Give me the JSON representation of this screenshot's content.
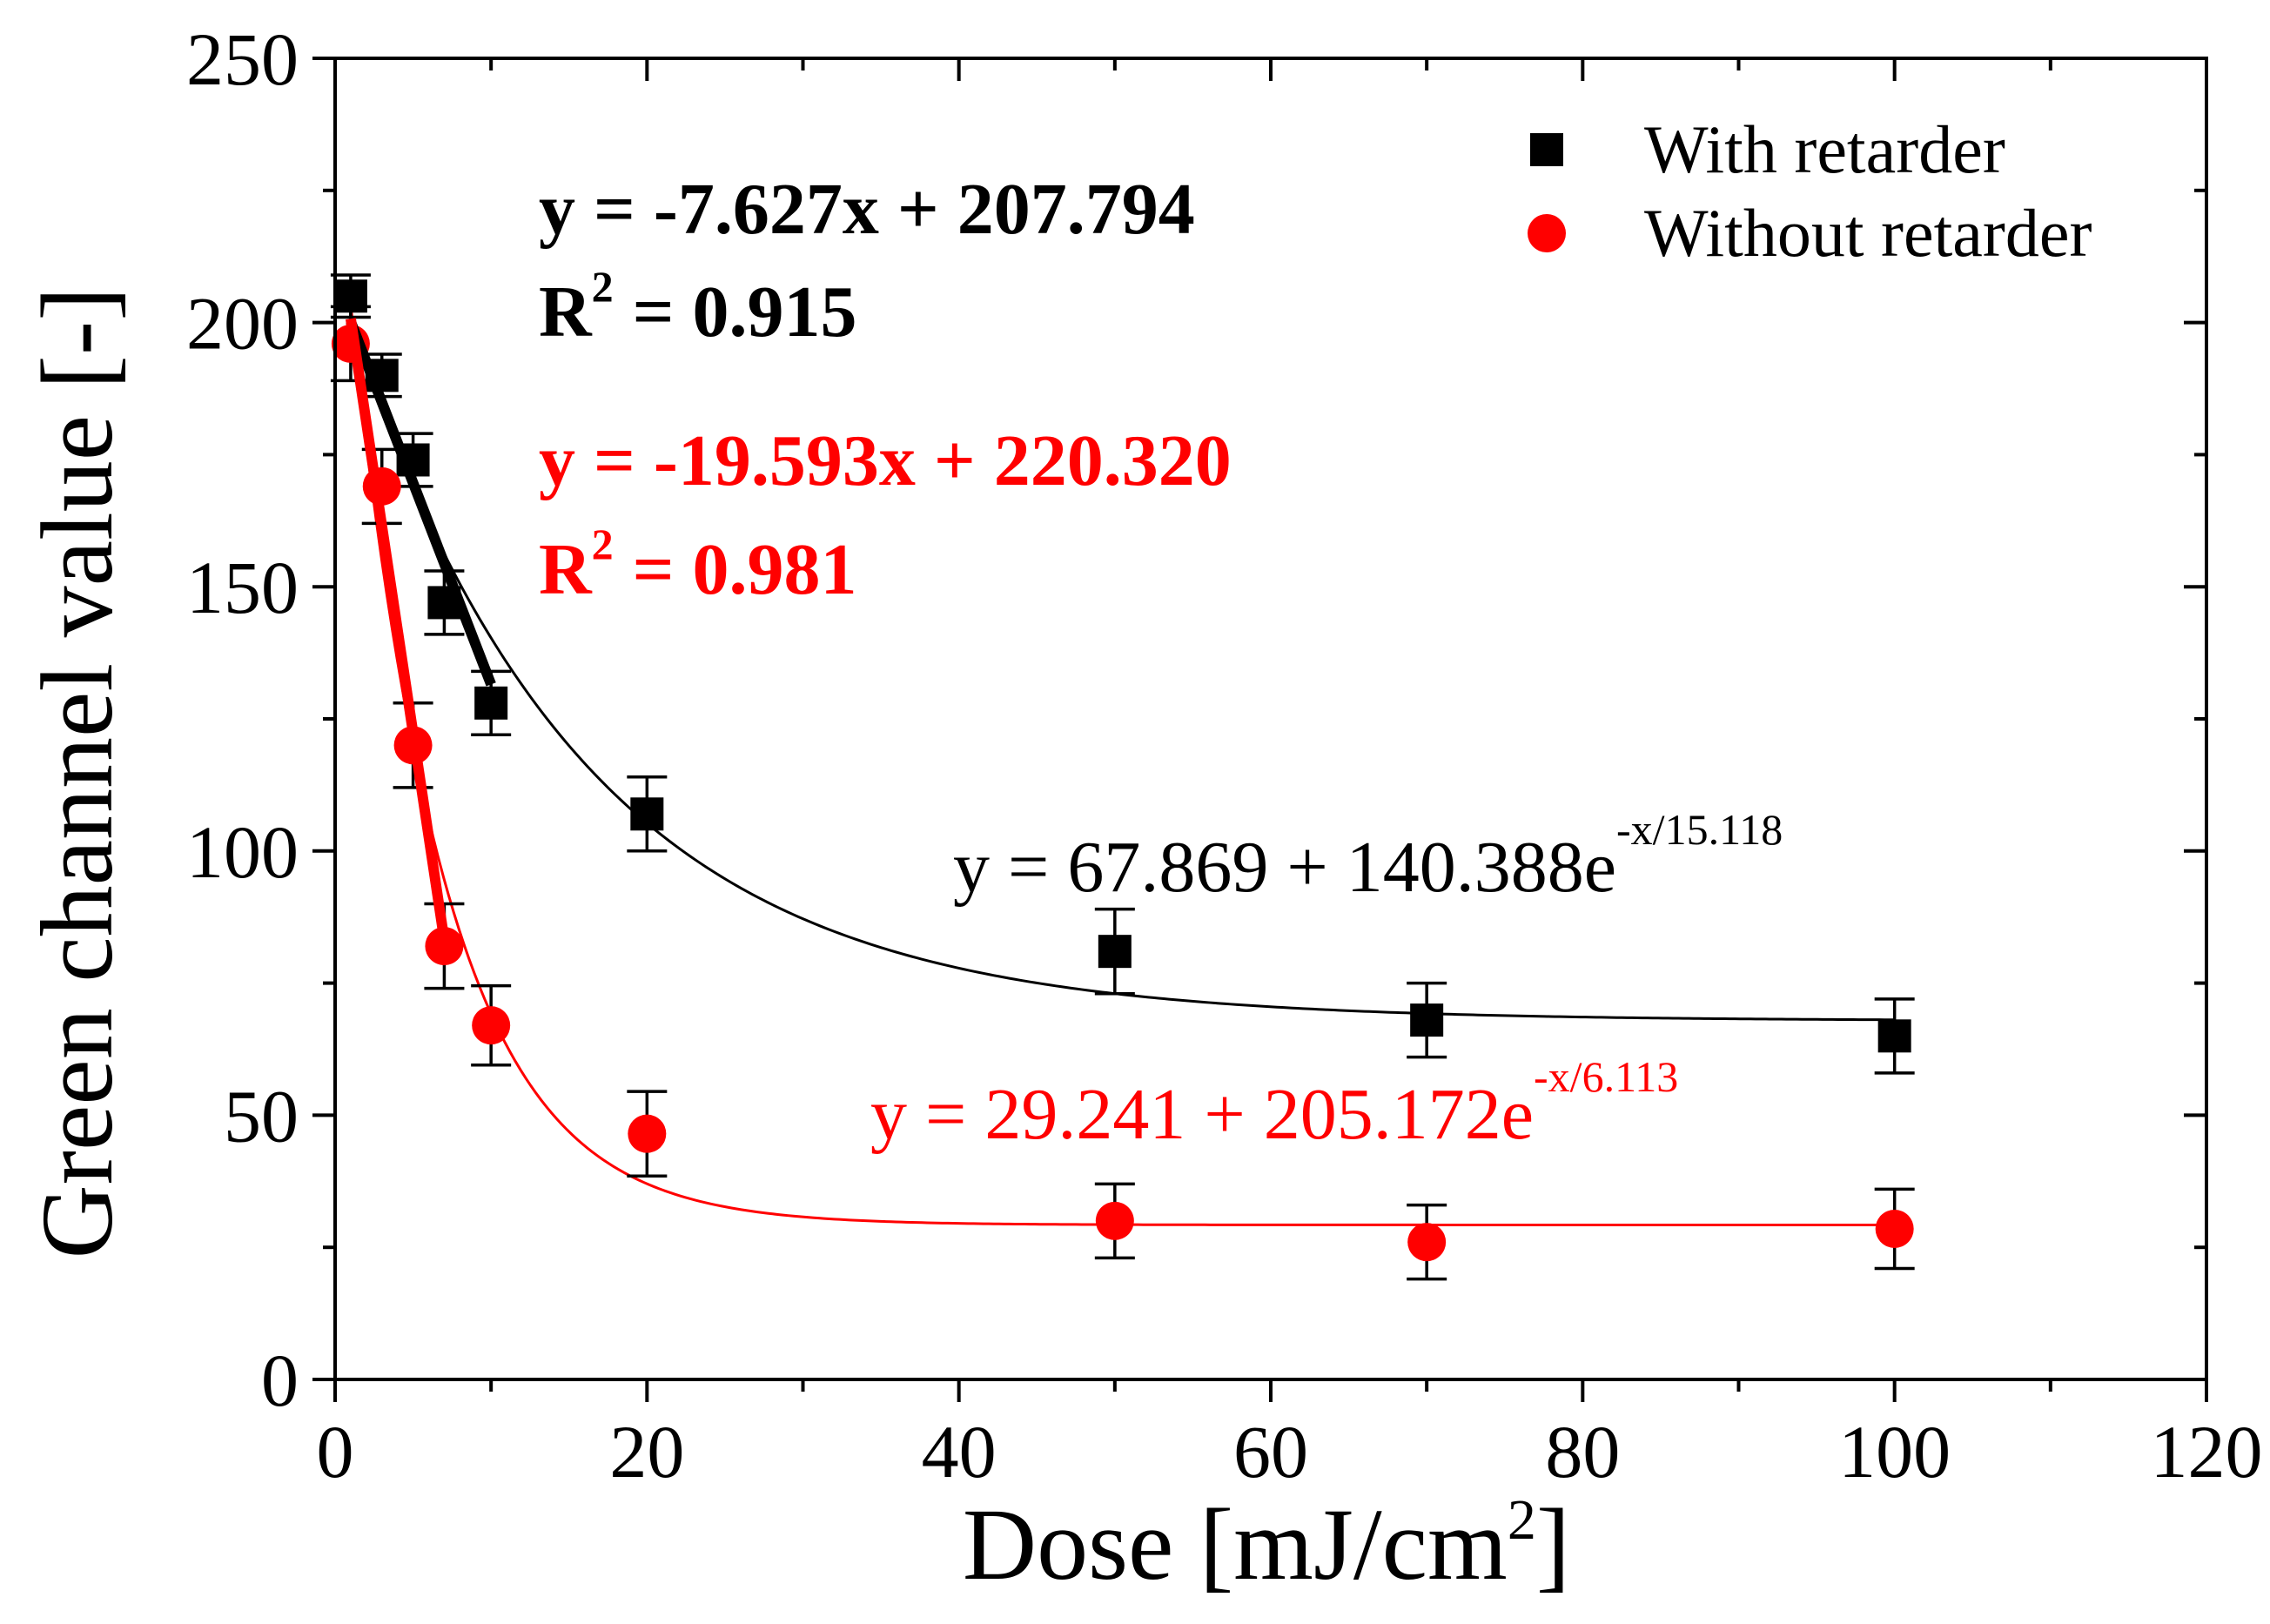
{
  "chart_data": {
    "type": "scatter",
    "xlabel": {
      "text": "Dose [mJ/cm",
      "sup": "2",
      "tail": "]"
    },
    "ylabel": "Green channel value [-]",
    "xlim": [
      0,
      120
    ],
    "ylim": [
      0,
      250
    ],
    "x_ticks": [
      0,
      20,
      40,
      60,
      80,
      100,
      120
    ],
    "y_ticks": [
      0,
      50,
      100,
      150,
      200,
      250
    ],
    "grid": false,
    "legend_position": "top-right",
    "error_bar_color": "#000000",
    "series": [
      {
        "name": "With retarder",
        "marker": "square",
        "color": "#000000",
        "x": [
          1,
          3,
          5,
          7,
          10,
          20,
          50,
          70,
          100
        ],
        "y": [
          205,
          190,
          174,
          147,
          128,
          107,
          81,
          68,
          65
        ],
        "error": [
          4,
          4,
          5,
          6,
          6,
          7,
          8,
          7,
          7
        ]
      },
      {
        "name": "Without retarder",
        "marker": "circle",
        "color": "#ff0000",
        "x": [
          1,
          3,
          5,
          7,
          10,
          20,
          50,
          70,
          100
        ],
        "y": [
          196,
          169,
          120,
          82,
          67,
          46.5,
          30,
          26,
          28.5
        ],
        "error": [
          7,
          7,
          8,
          8,
          7.5,
          8,
          7,
          7,
          7.5
        ]
      }
    ],
    "fits": [
      {
        "model": "linear",
        "series_index": 0,
        "slope": -7.627,
        "intercept": 207.794,
        "x_range": [
          1,
          10
        ],
        "color": "#000000",
        "equation": "y = -7.627x + 207.794",
        "r_squared": {
          "symbol": "R",
          "sup": "2",
          "value": "= 0.915"
        }
      },
      {
        "model": "linear",
        "series_index": 1,
        "slope": -19.593,
        "intercept": 220.32,
        "x_range": [
          1,
          7
        ],
        "color": "#ff0000",
        "equation": "y = -19.593x + 220.320",
        "r_squared": {
          "symbol": "R",
          "sup": "2",
          "value": "= 0.981"
        }
      },
      {
        "model": "exponential",
        "series_index": 0,
        "y0": 67.869,
        "A": 140.388,
        "t": 15.118,
        "x_range": [
          1,
          100
        ],
        "color": "#000000",
        "equation": {
          "base": "y = 67.869 + 140.388e",
          "sup": "-x/15.118"
        }
      },
      {
        "model": "exponential",
        "series_index": 1,
        "y0": 29.241,
        "A": 205.172,
        "t": 6.113,
        "x_range": [
          1,
          100
        ],
        "color": "#ff0000",
        "equation": {
          "base": "y = 29.241 + 205.172e",
          "sup": "-x/6.113"
        }
      }
    ]
  }
}
